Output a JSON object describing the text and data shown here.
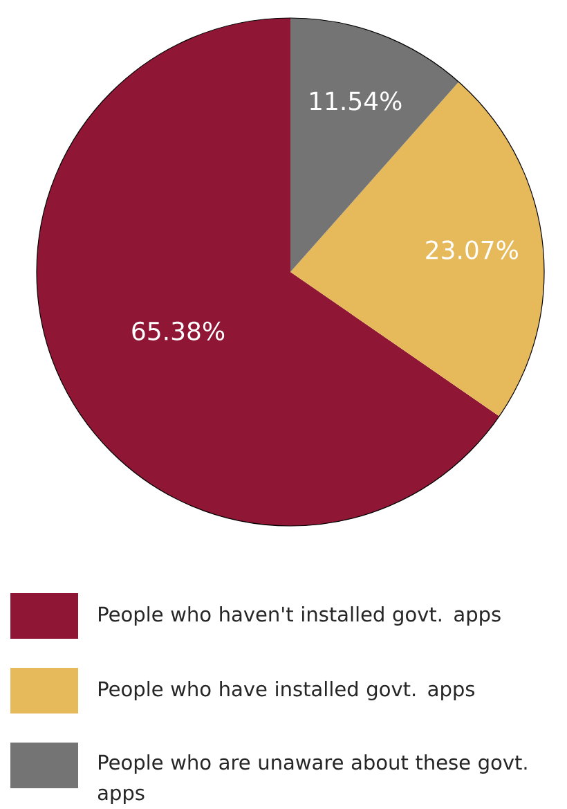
{
  "chart_data": {
    "type": "pie",
    "categories": [
      "People who haven't installed govt. apps",
      "People who have installed govt. apps",
      "People who are unaware about these govt. apps"
    ],
    "values": [
      65.38,
      23.07,
      11.54
    ],
    "colors": [
      "#8f1735",
      "#e6b95a",
      "#747474"
    ],
    "value_labels": [
      "65.38%",
      "23.07%",
      "11.54%"
    ],
    "legend": "bottom"
  }
}
